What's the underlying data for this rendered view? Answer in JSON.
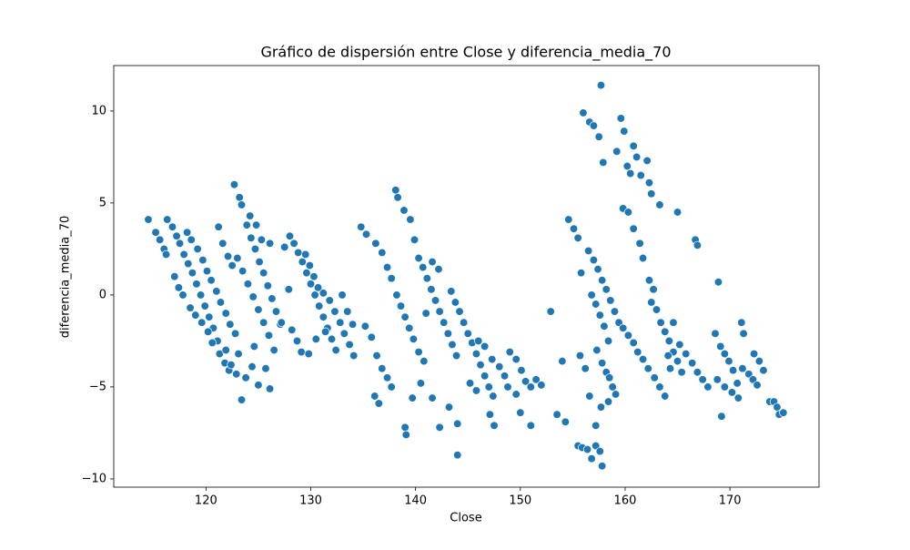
{
  "chart_data": {
    "type": "scatter",
    "title": "Gráfico de dispersión entre Close y diferencia_media_70",
    "x_label": "Close",
    "y_label": "diferencia_media_70",
    "color": "#1f77b4",
    "xlim": [
      111.2,
      178.5
    ],
    "ylim": [
      -10.45,
      12.47
    ],
    "xticks": [
      120,
      130,
      140,
      150,
      160,
      170
    ],
    "yticks": [
      {
        "value": -10,
        "label": "−10"
      },
      {
        "value": -5,
        "label": "−5"
      },
      0,
      5,
      10
    ],
    "x": [
      114.5,
      115.2,
      115.6,
      116,
      116.3,
      116.8,
      117.2,
      117.5,
      117.9,
      118.3,
      118.7,
      119.1,
      119.5,
      119.9,
      120.3,
      120.7,
      121.1,
      116.2,
      117,
      117.4,
      117.8,
      118.5,
      119,
      119.6,
      120.2,
      120.6,
      121.3,
      121.8,
      122.2,
      118.2,
      118.6,
      119.2,
      119.7,
      120.1,
      120.5,
      121,
      121.4,
      121.9,
      122.3,
      122.8,
      121.2,
      121.6,
      122.1,
      122.5,
      122.7,
      123.2,
      123.4,
      123.9,
      124.3,
      124.7,
      125.1,
      125.5,
      125.9,
      126.3,
      126.7,
      127.1,
      123,
      123.5,
      124,
      124.5,
      125,
      125.5,
      126,
      124.2,
      124.8,
      125.3,
      126.1,
      122.4,
      122.9,
      123.4,
      123.8,
      124.4,
      125,
      125.7,
      126.1,
      121.9,
      123.1,
      126.5,
      124.6,
      127.5,
      128,
      128.4,
      128.8,
      129.2,
      129.6,
      130,
      130.4,
      130.8,
      131.2,
      131.6,
      132,
      132.4,
      129.5,
      129.9,
      130.3,
      130.7,
      131.2,
      131.8,
      132.3,
      132.8,
      133.2,
      133.7,
      134.1,
      128.2,
      128.7,
      129.1,
      129.8,
      130.5,
      131.4,
      127.9,
      127.2,
      133,
      133.5,
      134,
      134.8,
      135.3,
      136.2,
      136.8,
      137.3,
      137.7,
      138.1,
      138.3,
      138.9,
      139.5,
      139.9,
      140.3,
      140.7,
      141.1,
      141.5,
      141.9,
      142.3,
      142.7,
      143.1,
      143.5,
      143.9,
      138.2,
      138.6,
      139,
      139.4,
      139.8,
      140.3,
      140.8,
      135.2,
      135.8,
      136.3,
      136.8,
      137.3,
      137.7,
      136.1,
      136.5,
      139,
      139.1,
      141,
      141.6,
      142.2,
      139.7,
      140.5,
      141.6,
      142.3,
      143.2,
      144,
      144,
      143.4,
      143.8,
      144.2,
      144.6,
      145,
      145.4,
      145.8,
      146.2,
      146.6,
      147,
      147.4,
      146,
      146.6,
      147.3,
      148,
      148.5,
      149,
      149.6,
      150.1,
      150.5,
      151,
      151.5,
      152,
      147.1,
      147.5,
      145.2,
      145.8,
      148.8,
      150,
      151,
      149.6,
      152.9,
      153.5,
      154,
      154.3,
      154.6,
      155.1,
      155.5,
      155.8,
      156,
      156.6,
      157,
      157.5,
      157.7,
      157.9,
      155.5,
      155.9,
      156.4,
      156.8,
      157.2,
      157.6,
      157.8,
      157.2,
      157.7,
      156.5,
      157,
      157.4,
      157.8,
      158.2,
      158.6,
      159,
      159.4,
      156.8,
      157.2,
      157.6,
      158,
      158.4,
      157.3,
      157.8,
      158.2,
      156.2,
      155.7,
      156.6,
      158.5,
      158.8,
      159.1,
      158.4,
      159.2,
      159.6,
      159.9,
      160.2,
      160.5,
      160.8,
      161.1,
      161.5,
      162.1,
      162.3,
      162.5,
      163.3,
      165,
      159.8,
      160.3,
      160.8,
      161.4,
      161.7,
      162.3,
      162.5,
      162.7,
      163,
      163.4,
      163.8,
      164.2,
      164.6,
      165,
      165.4,
      166.7,
      166.9,
      159.8,
      160.3,
      160.8,
      161.2,
      161.7,
      162.2,
      162.8,
      163.3,
      163.8,
      164.3,
      165.2,
      165.8,
      166.4,
      166.9,
      167.4,
      167.9,
      164.6,
      164.1,
      168.6,
      168.9,
      169.1,
      169.5,
      169.9,
      170.3,
      170.7,
      171.1,
      171.3,
      171.8,
      172.2,
      172.6,
      172.3,
      172.8,
      173.2,
      173.8,
      174.2,
      174.5,
      174.7,
      175.1,
      169.2,
      168.8,
      169.5,
      170.2,
      170.8,
      171.2
    ],
    "y": [
      4.1,
      3.4,
      3.0,
      2.5,
      4.1,
      3.7,
      3.2,
      2.8,
      2.2,
      1.7,
      1.2,
      0.6,
      0,
      -0.6,
      -1.2,
      -1.8,
      -2.5,
      2.2,
      1.0,
      0.4,
      0,
      -0.7,
      -1.1,
      -1.5,
      -2.0,
      -2.6,
      -3.2,
      -3.7,
      -4.1,
      3.4,
      3.0,
      2.5,
      1.9,
      1.3,
      0.8,
      0.2,
      -0.4,
      -1.0,
      -1.6,
      -2.1,
      3.7,
      2.8,
      2.1,
      1.6,
      6.0,
      5.3,
      4.9,
      3.8,
      3.1,
      2.5,
      1.8,
      1.2,
      0.5,
      -0.2,
      -0.9,
      -1.6,
      2.0,
      1.3,
      0.6,
      -0.1,
      -0.8,
      -1.5,
      -2.2,
      4.3,
      3.8,
      3.0,
      2.8,
      -3.8,
      -4.3,
      -5.7,
      -4.5,
      -3.9,
      -4.9,
      -4.0,
      -5.1,
      -3.0,
      -3.2,
      -3.0,
      -2.8,
      2.6,
      3.2,
      2.8,
      2.3,
      1.8,
      1.2,
      0.6,
      0,
      -0.6,
      -1.2,
      -1.8,
      -2.4,
      -3.0,
      2.2,
      1.6,
      1.0,
      0.4,
      0.1,
      -0.3,
      -0.9,
      -1.5,
      -2.1,
      -2.7,
      -3.3,
      -1.9,
      -2.5,
      -3.1,
      -3.2,
      -2.4,
      -2.0,
      0.3,
      -1.5,
      0,
      -0.9,
      -1.6,
      3.7,
      3.3,
      2.8,
      2.3,
      1.5,
      0.9,
      5.7,
      5.3,
      4.6,
      4.1,
      3.0,
      2.0,
      1.5,
      0.9,
      0.3,
      -0.3,
      -0.9,
      -1.5,
      -2.1,
      -2.7,
      -3.3,
      0,
      -0.6,
      -1.2,
      -1.8,
      -2.4,
      -3.1,
      -3.6,
      -1.7,
      -2.3,
      -3.3,
      -4.0,
      -4.5,
      -5.0,
      -5.5,
      -5.9,
      -7.2,
      -7.6,
      -1.0,
      1.8,
      1.4,
      -5.6,
      -4.8,
      -5.6,
      -7.2,
      -6.1,
      -8.7,
      -7.0,
      0.2,
      -0.4,
      -0.9,
      -1.5,
      -2.1,
      -2.6,
      -3.2,
      -3.8,
      -4.4,
      -5.0,
      -5.5,
      -2.5,
      -2.8,
      -3.5,
      -3.9,
      -4.4,
      -3.1,
      -3.5,
      -4.1,
      -4.7,
      -5.0,
      -4.6,
      -4.9,
      -6.5,
      -7.1,
      -4.8,
      -5.2,
      -5.0,
      -6.4,
      -7.1,
      -5.4,
      -0.9,
      -6.5,
      -3.6,
      -6.9,
      4.1,
      3.6,
      3.1,
      1.2,
      9.9,
      9.4,
      9.2,
      8.6,
      11.4,
      7.2,
      -8.2,
      -8.3,
      -8.4,
      -8.9,
      -8.2,
      -8.5,
      -9.3,
      -7.1,
      -6.1,
      2.4,
      1.9,
      1.4,
      0.8,
      0.3,
      -0.3,
      -0.9,
      -1.5,
      0,
      -0.5,
      -1.1,
      -1.7,
      -2.5,
      -3.0,
      -3.7,
      -4.2,
      -4.0,
      -3.3,
      -5.5,
      -4.5,
      -5.0,
      -5.4,
      -5.8,
      7.8,
      9.6,
      8.9,
      7.0,
      6.6,
      8.1,
      7.5,
      6.5,
      7.3,
      6.1,
      5.5,
      4.9,
      4.5,
      4.7,
      4.5,
      3.6,
      2.8,
      2.0,
      0.8,
      -0.4,
      0.3,
      -0.8,
      -1.5,
      -2.0,
      -2.5,
      -3.1,
      -3.6,
      -4.2,
      3.0,
      2.7,
      -1.8,
      -2.2,
      -2.6,
      -3.1,
      -3.5,
      -4.0,
      -4.5,
      -5.0,
      -5.5,
      -4.0,
      -2.7,
      -3.2,
      -3.7,
      -4.2,
      -4.6,
      -5.0,
      -1.5,
      -3.3,
      -2.1,
      0.7,
      -2.8,
      -3.2,
      -3.6,
      -4.1,
      -4.8,
      -1.5,
      -2.1,
      -4.3,
      -4.6,
      -4.9,
      -3.2,
      -3.6,
      -4.1,
      -5.8,
      -5.8,
      -6.1,
      -6.5,
      -6.4,
      -6.6,
      -4.6,
      -5.0,
      -5.3,
      -5.6,
      -4.0
    ]
  }
}
